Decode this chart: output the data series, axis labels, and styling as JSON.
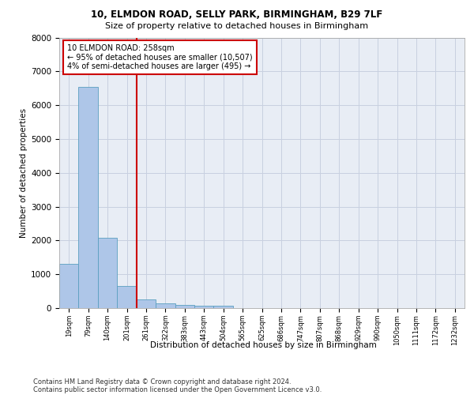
{
  "title_line1": "10, ELMDON ROAD, SELLY PARK, BIRMINGHAM, B29 7LF",
  "title_line2": "Size of property relative to detached houses in Birmingham",
  "xlabel": "Distribution of detached houses by size in Birmingham",
  "ylabel": "Number of detached properties",
  "footnote1": "Contains HM Land Registry data © Crown copyright and database right 2024.",
  "footnote2": "Contains public sector information licensed under the Open Government Licence v3.0.",
  "annotation_line1": "10 ELMDON ROAD: 258sqm",
  "annotation_line2": "← 95% of detached houses are smaller (10,507)",
  "annotation_line3": "4% of semi-detached houses are larger (495) →",
  "bar_color": "#aec6e8",
  "bar_edge_color": "#5a9fc0",
  "vline_color": "#cc0000",
  "annotation_box_edge_color": "#cc0000",
  "grid_color": "#c8d0e0",
  "background_color": "#e8edf5",
  "categories": [
    "19sqm",
    "79sqm",
    "140sqm",
    "201sqm",
    "261sqm",
    "322sqm",
    "383sqm",
    "443sqm",
    "504sqm",
    "565sqm",
    "625sqm",
    "686sqm",
    "747sqm",
    "807sqm",
    "868sqm",
    "929sqm",
    "990sqm",
    "1050sqm",
    "1111sqm",
    "1172sqm",
    "1232sqm"
  ],
  "values": [
    1300,
    6550,
    2080,
    650,
    260,
    150,
    95,
    60,
    60,
    0,
    0,
    0,
    0,
    0,
    0,
    0,
    0,
    0,
    0,
    0,
    0
  ],
  "vline_x": 3.5,
  "ylim": [
    0,
    8000
  ],
  "yticks": [
    0,
    1000,
    2000,
    3000,
    4000,
    5000,
    6000,
    7000,
    8000
  ]
}
